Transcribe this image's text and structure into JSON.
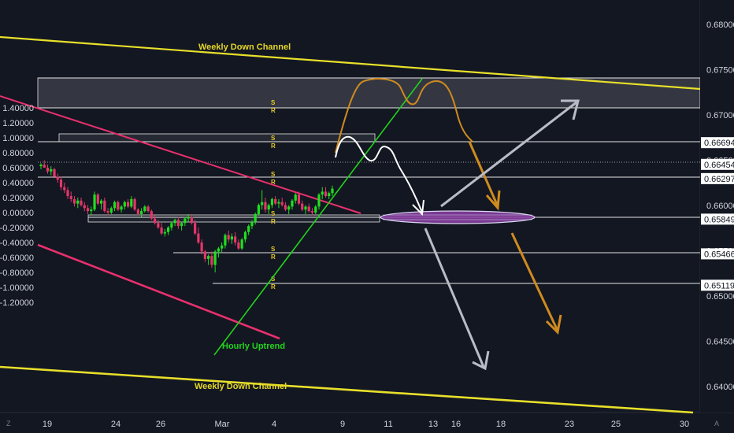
{
  "chart_data": {
    "type": "candlestick",
    "left_axis": {
      "ticks": [
        "1.40000",
        "1.20000",
        "1.00000",
        "0.80000",
        "0.60000",
        "0.40000",
        "0.20000",
        "0.00000",
        "-0.20000",
        "-0.40000",
        "-0.60000",
        "-0.80000",
        "-1.00000",
        "-1.20000"
      ],
      "ylim": [
        -1.3,
        1.4
      ]
    },
    "right_axis": {
      "ticks": [
        "0.68000",
        "0.67500",
        "0.67000",
        "0.66500",
        "0.66000",
        "0.65500",
        "0.65000",
        "0.64500",
        "0.64000"
      ],
      "ylim": [
        0.6386,
        0.6808
      ]
    },
    "x_ticks": [
      "19",
      "24",
      "26",
      "Mar",
      "4",
      "9",
      "11",
      "13",
      "16",
      "18",
      "23",
      "25",
      "30"
    ],
    "price_tags": [
      {
        "label": "0.66694",
        "value": 0.66694
      },
      {
        "label": "0.66454",
        "value": 0.66454
      },
      {
        "label": "0.66297",
        "value": 0.66297
      },
      {
        "label": "0.65849",
        "value": 0.65849
      },
      {
        "label": "0.65466",
        "value": 0.65466
      },
      {
        "label": "0.65119",
        "value": 0.65119
      }
    ],
    "annotations": [
      {
        "text": "Weekly Down Channel",
        "color": "#e5d726"
      },
      {
        "text": "Weekly Down Channel",
        "color": "#e5d726"
      },
      {
        "text": "Hourly Uptrend",
        "color": "#22d31c"
      }
    ],
    "sr_label": [
      "S",
      "R"
    ],
    "corner_labels": {
      "left": "Z",
      "right": "A"
    },
    "colors": {
      "background": "#131722",
      "up": "#1ee01e",
      "down": "#e5356a",
      "channel": "#e8e02a",
      "hourly_trend": "#22d31c",
      "pink_trend": "#e8306d",
      "projection_orange": "#cf8b1e",
      "projection_white": "#ffffff",
      "projection_grey": "#b8bcc4",
      "target_zone": "#8d3fa6"
    },
    "series": [
      {
        "name": "",
        "ohlc": [
          [
            0.62,
            0.66,
            0.58,
            0.64
          ],
          [
            0.64,
            0.7,
            0.6,
            0.6
          ],
          [
            0.6,
            0.64,
            0.52,
            0.55
          ],
          [
            0.55,
            0.62,
            0.5,
            0.58
          ],
          [
            0.58,
            0.6,
            0.46,
            0.48
          ],
          [
            0.48,
            0.52,
            0.4,
            0.44
          ],
          [
            0.44,
            0.48,
            0.3,
            0.34
          ],
          [
            0.34,
            0.4,
            0.26,
            0.3
          ],
          [
            0.3,
            0.34,
            0.18,
            0.22
          ],
          [
            0.22,
            0.28,
            0.14,
            0.18
          ],
          [
            0.18,
            0.22,
            0.08,
            0.12
          ],
          [
            0.12,
            0.2,
            0.06,
            0.16
          ],
          [
            0.16,
            0.2,
            0.08,
            0.1
          ],
          [
            0.1,
            0.14,
            0.02,
            0.06
          ],
          [
            0.06,
            0.1,
            -0.02,
            0.02
          ],
          [
            0.02,
            0.08,
            -0.04,
            0.04
          ],
          [
            0.04,
            0.28,
            0.02,
            0.24
          ],
          [
            0.24,
            0.26,
            0.1,
            0.12
          ],
          [
            0.12,
            0.18,
            0.04,
            0.16
          ],
          [
            0.16,
            0.2,
            0.0,
            0.02
          ],
          [
            0.02,
            0.06,
            -0.04,
            0.0
          ],
          [
            0.0,
            0.08,
            -0.02,
            0.06
          ],
          [
            0.06,
            0.16,
            0.02,
            0.14
          ],
          [
            0.14,
            0.16,
            0.02,
            0.04
          ],
          [
            0.04,
            0.1,
            0.0,
            0.08
          ],
          [
            0.08,
            0.16,
            0.04,
            0.14
          ],
          [
            0.14,
            0.18,
            0.06,
            0.08
          ],
          [
            0.08,
            0.22,
            0.06,
            0.18
          ],
          [
            0.18,
            0.2,
            0.02,
            0.04
          ],
          [
            0.04,
            0.06,
            -0.04,
            -0.02
          ],
          [
            -0.02,
            0.06,
            -0.06,
            0.02
          ],
          [
            0.02,
            0.1,
            0.0,
            0.08
          ],
          [
            0.08,
            0.1,
            0.0,
            0.02
          ],
          [
            0.02,
            0.04,
            -0.1,
            -0.08
          ],
          [
            -0.08,
            -0.04,
            -0.16,
            -0.14
          ],
          [
            -0.14,
            -0.1,
            -0.22,
            -0.2
          ],
          [
            -0.2,
            -0.14,
            -0.3,
            -0.28
          ],
          [
            -0.28,
            -0.22,
            -0.32,
            -0.26
          ],
          [
            -0.26,
            -0.18,
            -0.3,
            -0.2
          ],
          [
            -0.2,
            -0.12,
            -0.24,
            -0.14
          ],
          [
            -0.14,
            -0.08,
            -0.18,
            -0.1
          ],
          [
            -0.1,
            -0.06,
            -0.22,
            -0.18
          ],
          [
            -0.18,
            -0.12,
            -0.24,
            -0.14
          ],
          [
            -0.14,
            -0.06,
            -0.18,
            -0.08
          ],
          [
            -0.08,
            -0.02,
            -0.12,
            -0.06
          ],
          [
            -0.06,
            -0.02,
            -0.16,
            -0.14
          ],
          [
            -0.14,
            -0.1,
            -0.3,
            -0.28
          ],
          [
            -0.28,
            -0.2,
            -0.42,
            -0.4
          ],
          [
            -0.4,
            -0.36,
            -0.56,
            -0.52
          ],
          [
            -0.52,
            -0.5,
            -0.66,
            -0.62
          ],
          [
            -0.62,
            -0.56,
            -0.7,
            -0.58
          ],
          [
            -0.58,
            -0.52,
            -0.74,
            -0.7
          ],
          [
            -0.7,
            -0.5,
            -0.8,
            -0.52
          ],
          [
            -0.52,
            -0.46,
            -0.6,
            -0.48
          ],
          [
            -0.48,
            -0.4,
            -0.54,
            -0.44
          ],
          [
            -0.44,
            -0.28,
            -0.48,
            -0.3
          ],
          [
            -0.3,
            -0.24,
            -0.4,
            -0.36
          ],
          [
            -0.36,
            -0.28,
            -0.42,
            -0.32
          ],
          [
            -0.32,
            -0.26,
            -0.44,
            -0.4
          ],
          [
            -0.4,
            -0.36,
            -0.5,
            -0.48
          ],
          [
            -0.48,
            -0.34,
            -0.5,
            -0.36
          ],
          [
            -0.36,
            -0.24,
            -0.4,
            -0.26
          ],
          [
            -0.26,
            -0.16,
            -0.3,
            -0.18
          ],
          [
            -0.18,
            -0.1,
            -0.22,
            -0.12
          ],
          [
            -0.12,
            0.0,
            -0.16,
            -0.02
          ],
          [
            -0.02,
            0.12,
            -0.04,
            0.1
          ],
          [
            0.1,
            0.3,
            0.04,
            0.14
          ],
          [
            0.14,
            0.2,
            0.0,
            0.04
          ],
          [
            0.04,
            0.12,
            -0.02,
            0.1
          ],
          [
            0.1,
            0.2,
            0.06,
            0.18
          ],
          [
            0.18,
            0.22,
            0.1,
            0.12
          ],
          [
            0.12,
            0.18,
            0.06,
            0.14
          ],
          [
            0.14,
            0.2,
            0.08,
            0.1
          ],
          [
            0.1,
            0.14,
            0.02,
            0.04
          ],
          [
            0.04,
            0.1,
            -0.02,
            0.08
          ],
          [
            0.08,
            0.18,
            0.04,
            0.16
          ],
          [
            0.16,
            0.26,
            0.12,
            0.24
          ],
          [
            0.24,
            0.28,
            0.1,
            0.12
          ],
          [
            0.12,
            0.16,
            0.02,
            0.04
          ],
          [
            0.04,
            0.1,
            -0.02,
            0.08
          ],
          [
            0.08,
            0.12,
            0.0,
            0.02
          ],
          [
            0.02,
            0.06,
            -0.04,
            0.0
          ],
          [
            0.0,
            0.1,
            -0.02,
            0.08
          ],
          [
            0.08,
            0.26,
            0.04,
            0.24
          ],
          [
            0.24,
            0.34,
            0.18,
            0.28
          ],
          [
            0.28,
            0.34,
            0.2,
            0.22
          ],
          [
            0.22,
            0.28,
            0.18,
            0.26
          ],
          [
            0.26,
            0.36,
            0.22,
            0.32
          ]
        ]
      }
    ]
  }
}
